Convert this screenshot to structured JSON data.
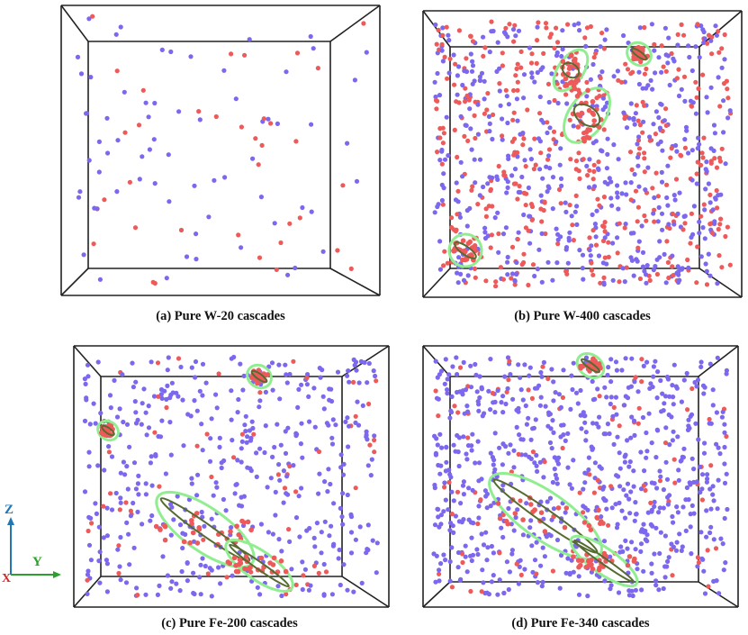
{
  "figure": {
    "panels": [
      {
        "id": "a",
        "caption": "(a) Pure W-20 cascades",
        "density": 20
      },
      {
        "id": "b",
        "caption": "(b) Pure W-400 cascades",
        "density": 400
      },
      {
        "id": "c",
        "caption": "(c) Pure Fe-200 cascades",
        "density": 200
      },
      {
        "id": "d",
        "caption": "(d) Pure Fe-340 cascades",
        "density": 340
      }
    ],
    "axes": {
      "z_label": "Z",
      "y_label": "Y",
      "x_label": "X"
    },
    "colors": {
      "vacancy": "#7b68ee",
      "interstitial": "#ee5a5a",
      "dislocation": "#90ee90",
      "dislocation_core": "#556b2f",
      "box_edge": "#222222",
      "z_axis": "#1f77b4",
      "y_axis": "#2ca02c",
      "x_axis": "#d62728"
    }
  }
}
